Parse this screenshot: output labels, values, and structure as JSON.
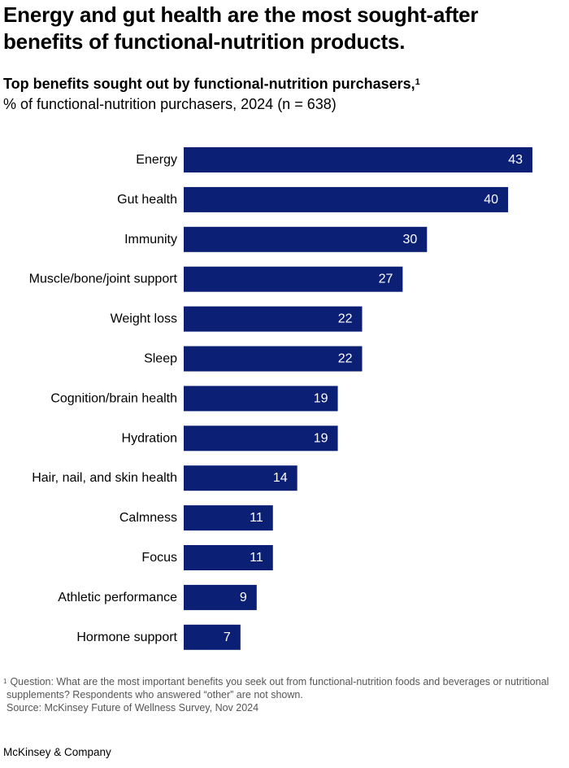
{
  "headline": "Energy and gut health are the most sought-after benefits of functional-nutrition products.",
  "footnote": {
    "marker": "1",
    "text": "Question: What are the most important benefits you seek out from functional-nutrition foods and beverages or nutritional supplements? Respondents who answered “other” are not shown.",
    "source": "Source: McKinsey Future of Wellness Survey, Nov 2024"
  },
  "brand": "McKinsey & Company",
  "colors": {
    "bar": "#0b1f75",
    "bar_label": "#ffffff",
    "category_label": "#000000"
  },
  "chart_data": {
    "type": "bar",
    "orientation": "horizontal",
    "title": "Top benefits sought out by functional-nutrition purchasers,",
    "title_footnote_marker": "1",
    "subtitle": "% of functional-nutrition purchasers, 2024 (n = 638)",
    "xlabel": "",
    "ylabel": "",
    "xlim": [
      0,
      43
    ],
    "grid": false,
    "legend": "none",
    "data_labels": "inside-end",
    "categories": [
      "Energy",
      "Gut health",
      "Immunity",
      "Muscle/bone/joint support",
      "Weight loss",
      "Sleep",
      "Cognition/brain health",
      "Hydration",
      "Hair, nail, and skin health",
      "Calmness",
      "Focus",
      "Athletic performance",
      "Hormone support"
    ],
    "values": [
      43,
      40,
      30,
      27,
      22,
      22,
      19,
      19,
      14,
      11,
      11,
      9,
      7
    ]
  }
}
